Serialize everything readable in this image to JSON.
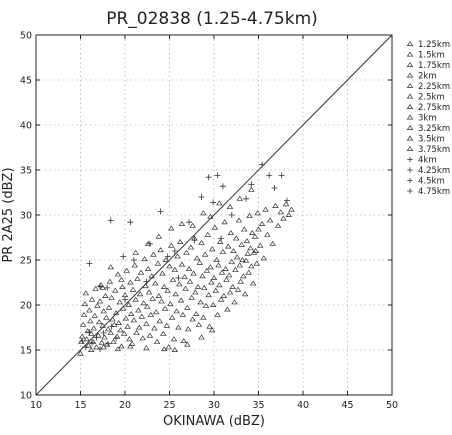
{
  "chart_data": {
    "type": "scatter",
    "title": "PR_02838 (1.25-4.75km)",
    "xlabel": "OKINAWA (dBZ)",
    "ylabel": "PR 2A25 (dBZ)",
    "xlim": [
      10,
      50
    ],
    "ylim": [
      10,
      50
    ],
    "xticks": [
      "10",
      "15",
      "20",
      "25",
      "30",
      "35",
      "40",
      "45",
      "50"
    ],
    "yticks": [
      "10",
      "15",
      "20",
      "25",
      "30",
      "35",
      "40",
      "45",
      "50"
    ],
    "grid": true,
    "reference_line": "1:1",
    "legend_position": "outside-right",
    "legend": [
      {
        "label": "1.25km",
        "marker": "triangle"
      },
      {
        "label": "1.5km",
        "marker": "triangle"
      },
      {
        "label": "1.75km",
        "marker": "triangle"
      },
      {
        "label": "2km",
        "marker": "triangle"
      },
      {
        "label": "2.25km",
        "marker": "triangle"
      },
      {
        "label": "2.5km",
        "marker": "triangle"
      },
      {
        "label": "2.75km",
        "marker": "triangle"
      },
      {
        "label": "3km",
        "marker": "triangle"
      },
      {
        "label": "3.25km",
        "marker": "triangle"
      },
      {
        "label": "3.5km",
        "marker": "triangle"
      },
      {
        "label": "3.75km",
        "marker": "triangle"
      },
      {
        "label": "4km",
        "marker": "plus"
      },
      {
        "label": "4.25km",
        "marker": "plus"
      },
      {
        "label": "4.5km",
        "marker": "plus"
      },
      {
        "label": "4.75km",
        "marker": "plus"
      }
    ],
    "series": [
      {
        "marker": "triangle",
        "points": [
          [
            15.0,
            14.6
          ],
          [
            15.1,
            15.9
          ],
          [
            15.2,
            16.5
          ],
          [
            15.3,
            17.8
          ],
          [
            15.4,
            18.9
          ],
          [
            15.5,
            20.1
          ],
          [
            15.6,
            21.3
          ],
          [
            15.7,
            16.2
          ],
          [
            15.8,
            17.1
          ],
          [
            15.9,
            15.5
          ],
          [
            16.0,
            19.4
          ],
          [
            16.1,
            18.2
          ],
          [
            16.2,
            16.8
          ],
          [
            16.3,
            20.6
          ],
          [
            16.4,
            15.9
          ],
          [
            16.5,
            17.4
          ],
          [
            16.6,
            18.8
          ],
          [
            16.7,
            21.8
          ],
          [
            16.8,
            15.3
          ],
          [
            16.9,
            19.9
          ],
          [
            17.0,
            16.6
          ],
          [
            17.1,
            18.1
          ],
          [
            17.2,
            20.4
          ],
          [
            17.3,
            22.2
          ],
          [
            17.4,
            15.8
          ],
          [
            17.5,
            17.7
          ],
          [
            17.6,
            19.3
          ],
          [
            17.7,
            16.4
          ],
          [
            17.8,
            21.0
          ],
          [
            17.9,
            18.6
          ],
          [
            18.0,
            15.6
          ],
          [
            18.1,
            17.3
          ],
          [
            18.2,
            19.7
          ],
          [
            18.3,
            22.6
          ],
          [
            18.4,
            16.9
          ],
          [
            18.5,
            20.8
          ],
          [
            18.6,
            18.4
          ],
          [
            18.7,
            15.9
          ],
          [
            18.8,
            17.8
          ],
          [
            18.9,
            21.6
          ],
          [
            19.0,
            19.1
          ],
          [
            19.1,
            16.5
          ],
          [
            19.2,
            23.4
          ],
          [
            19.3,
            18.0
          ],
          [
            19.4,
            20.3
          ],
          [
            19.5,
            17.2
          ],
          [
            19.6,
            15.4
          ],
          [
            19.7,
            22.0
          ],
          [
            19.8,
            19.6
          ],
          [
            19.9,
            16.8
          ],
          [
            20.0,
            21.1
          ],
          [
            20.1,
            18.5
          ],
          [
            20.2,
            23.8
          ],
          [
            20.3,
            17.6
          ],
          [
            20.4,
            20.0
          ],
          [
            20.5,
            16.2
          ],
          [
            20.6,
            22.5
          ],
          [
            20.7,
            19.0
          ],
          [
            20.8,
            15.7
          ],
          [
            20.9,
            21.7
          ],
          [
            21.0,
            18.3
          ],
          [
            21.1,
            24.4
          ],
          [
            21.2,
            20.6
          ],
          [
            21.3,
            16.9
          ],
          [
            21.4,
            22.9
          ],
          [
            21.5,
            19.4
          ],
          [
            21.6,
            17.5
          ],
          [
            21.7,
            21.2
          ],
          [
            21.8,
            23.6
          ],
          [
            21.9,
            18.7
          ],
          [
            22.0,
            16.3
          ],
          [
            22.1,
            20.2
          ],
          [
            22.2,
            25.1
          ],
          [
            22.3,
            22.1
          ],
          [
            22.4,
            17.9
          ],
          [
            22.5,
            19.8
          ],
          [
            22.6,
            24.0
          ],
          [
            22.7,
            21.4
          ],
          [
            22.8,
            16.6
          ],
          [
            22.9,
            18.9
          ],
          [
            23.0,
            23.2
          ],
          [
            23.1,
            20.7
          ],
          [
            23.2,
            25.6
          ],
          [
            23.3,
            17.4
          ],
          [
            23.4,
            22.4
          ],
          [
            23.5,
            19.2
          ],
          [
            23.6,
            15.9
          ],
          [
            23.7,
            24.6
          ],
          [
            23.8,
            21.0
          ],
          [
            23.9,
            18.2
          ],
          [
            24.0,
            26.1
          ],
          [
            24.1,
            20.4
          ],
          [
            24.2,
            23.5
          ],
          [
            24.3,
            16.8
          ],
          [
            24.4,
            22.0
          ],
          [
            24.5,
            19.6
          ],
          [
            24.6,
            25.0
          ],
          [
            24.7,
            17.7
          ],
          [
            24.8,
            21.6
          ],
          [
            24.9,
            15.3
          ],
          [
            25.0,
            24.3
          ],
          [
            25.1,
            20.1
          ],
          [
            25.2,
            26.6
          ],
          [
            25.3,
            18.6
          ],
          [
            25.4,
            22.8
          ],
          [
            25.5,
            16.2
          ],
          [
            25.6,
            23.9
          ],
          [
            25.7,
            21.2
          ],
          [
            25.8,
            19.3
          ],
          [
            25.9,
            25.4
          ],
          [
            26.0,
            17.5
          ],
          [
            26.1,
            22.3
          ],
          [
            26.2,
            27.0
          ],
          [
            26.3,
            20.5
          ],
          [
            26.4,
            24.5
          ],
          [
            26.5,
            18.9
          ],
          [
            26.6,
            16.0
          ],
          [
            26.7,
            23.1
          ],
          [
            26.8,
            21.8
          ],
          [
            26.9,
            25.8
          ],
          [
            27.0,
            19.7
          ],
          [
            27.1,
            17.3
          ],
          [
            27.2,
            24.0
          ],
          [
            27.3,
            22.6
          ],
          [
            27.4,
            26.4
          ],
          [
            27.5,
            20.8
          ],
          [
            27.6,
            18.4
          ],
          [
            27.7,
            23.5
          ],
          [
            27.8,
            27.4
          ],
          [
            27.9,
            21.4
          ],
          [
            28.0,
            19.0
          ],
          [
            28.1,
            25.2
          ],
          [
            28.2,
            22.0
          ],
          [
            28.3,
            17.8
          ],
          [
            28.4,
            24.7
          ],
          [
            28.5,
            20.3
          ],
          [
            28.6,
            26.9
          ],
          [
            28.7,
            23.2
          ],
          [
            28.8,
            18.6
          ],
          [
            28.9,
            21.9
          ],
          [
            29.0,
            25.6
          ],
          [
            29.1,
            19.9
          ],
          [
            29.2,
            23.8
          ],
          [
            29.3,
            27.8
          ],
          [
            29.4,
            21.1
          ],
          [
            29.5,
            17.6
          ],
          [
            29.6,
            24.2
          ],
          [
            29.7,
            22.5
          ],
          [
            29.8,
            26.2
          ],
          [
            29.9,
            20.0
          ],
          [
            30.0,
            23.0
          ],
          [
            30.1,
            28.6
          ],
          [
            30.2,
            21.6
          ],
          [
            30.3,
            25.0
          ],
          [
            30.4,
            18.9
          ],
          [
            30.5,
            24.4
          ],
          [
            30.6,
            22.2
          ],
          [
            30.7,
            27.0
          ],
          [
            30.8,
            20.6
          ],
          [
            30.9,
            23.6
          ],
          [
            31.0,
            25.9
          ],
          [
            31.1,
            21.0
          ],
          [
            31.2,
            29.2
          ],
          [
            31.3,
            24.0
          ],
          [
            31.4,
            22.8
          ],
          [
            31.5,
            19.5
          ],
          [
            31.6,
            26.5
          ],
          [
            31.7,
            23.3
          ],
          [
            31.8,
            21.4
          ],
          [
            31.9,
            28.0
          ],
          [
            32.0,
            24.8
          ],
          [
            32.1,
            22.0
          ],
          [
            32.2,
            26.0
          ],
          [
            32.3,
            20.3
          ],
          [
            32.4,
            23.9
          ],
          [
            32.5,
            27.4
          ],
          [
            32.6,
            25.3
          ],
          [
            32.7,
            21.7
          ],
          [
            32.8,
            29.4
          ],
          [
            32.9,
            24.4
          ],
          [
            33.0,
            22.6
          ],
          [
            33.1,
            26.7
          ],
          [
            33.2,
            25.0
          ],
          [
            33.3,
            23.2
          ],
          [
            33.4,
            28.4
          ],
          [
            33.5,
            21.2
          ],
          [
            33.6,
            24.9
          ],
          [
            33.7,
            27.1
          ],
          [
            33.8,
            25.7
          ],
          [
            33.9,
            23.6
          ],
          [
            34.0,
            29.9
          ],
          [
            34.1,
            26.3
          ],
          [
            34.2,
            24.3
          ],
          [
            34.3,
            28.0
          ],
          [
            34.4,
            22.4
          ],
          [
            34.5,
            25.8
          ],
          [
            34.6,
            27.6
          ],
          [
            34.7,
            26.0
          ],
          [
            34.8,
            24.6
          ],
          [
            34.9,
            30.2
          ],
          [
            35.0,
            28.4
          ],
          [
            35.2,
            26.6
          ],
          [
            35.4,
            29.0
          ],
          [
            35.6,
            25.2
          ],
          [
            35.8,
            30.6
          ],
          [
            36.0,
            27.8
          ],
          [
            36.3,
            29.4
          ],
          [
            36.6,
            26.8
          ],
          [
            36.9,
            31.0
          ],
          [
            37.2,
            28.8
          ],
          [
            37.5,
            30.3
          ],
          [
            37.8,
            29.6
          ],
          [
            38.1,
            31.2
          ],
          [
            38.4,
            30.0
          ],
          [
            38.7,
            30.6
          ],
          [
            17.5,
            21.9
          ],
          [
            18.4,
            24.2
          ],
          [
            19.6,
            22.8
          ],
          [
            21.2,
            25.8
          ],
          [
            22.6,
            26.8
          ],
          [
            23.8,
            27.6
          ],
          [
            25.2,
            28.5
          ],
          [
            26.4,
            29.0
          ],
          [
            27.6,
            28.8
          ],
          [
            28.8,
            30.2
          ],
          [
            29.6,
            29.8
          ],
          [
            30.6,
            31.3
          ],
          [
            31.8,
            30.9
          ],
          [
            32.9,
            31.8
          ],
          [
            34.2,
            32.8
          ],
          [
            16.2,
            15.0
          ],
          [
            17.6,
            15.3
          ],
          [
            19.2,
            15.1
          ],
          [
            20.6,
            15.4
          ],
          [
            22.4,
            15.2
          ],
          [
            24.4,
            15.1
          ],
          [
            25.6,
            15.0
          ],
          [
            27.0,
            15.6
          ],
          [
            28.6,
            16.4
          ],
          [
            29.8,
            17.2
          ]
        ]
      },
      {
        "marker": "plus",
        "points": [
          [
            15.2,
            16.0
          ],
          [
            15.6,
            15.3
          ],
          [
            16.0,
            17.0
          ],
          [
            16.3,
            15.8
          ],
          [
            16.8,
            16.4
          ],
          [
            17.2,
            15.1
          ],
          [
            17.6,
            16.9
          ],
          [
            18.1,
            15.7
          ],
          [
            18.5,
            17.6
          ],
          [
            19.0,
            16.3
          ],
          [
            16.0,
            24.6
          ],
          [
            17.2,
            22.1
          ],
          [
            18.0,
            21.9
          ],
          [
            18.4,
            29.4
          ],
          [
            19.8,
            25.4
          ],
          [
            20.6,
            29.2
          ],
          [
            21.0,
            25.0
          ],
          [
            22.8,
            26.8
          ],
          [
            24.0,
            30.4
          ],
          [
            25.6,
            26.0
          ],
          [
            27.2,
            29.2
          ],
          [
            28.6,
            32.0
          ],
          [
            29.4,
            34.2
          ],
          [
            29.9,
            31.4
          ],
          [
            30.4,
            34.4
          ],
          [
            31.0,
            33.2
          ],
          [
            32.0,
            30.0
          ],
          [
            33.6,
            31.8
          ],
          [
            34.2,
            33.4
          ],
          [
            35.4,
            35.6
          ],
          [
            36.2,
            34.4
          ],
          [
            36.8,
            33.0
          ],
          [
            37.6,
            34.4
          ],
          [
            38.2,
            31.6
          ],
          [
            30.8,
            27.4
          ],
          [
            26.0,
            23.0
          ],
          [
            22.4,
            22.6
          ],
          [
            20.0,
            20.6
          ],
          [
            24.8,
            25.4
          ],
          [
            27.8,
            27.2
          ]
        ]
      }
    ]
  }
}
